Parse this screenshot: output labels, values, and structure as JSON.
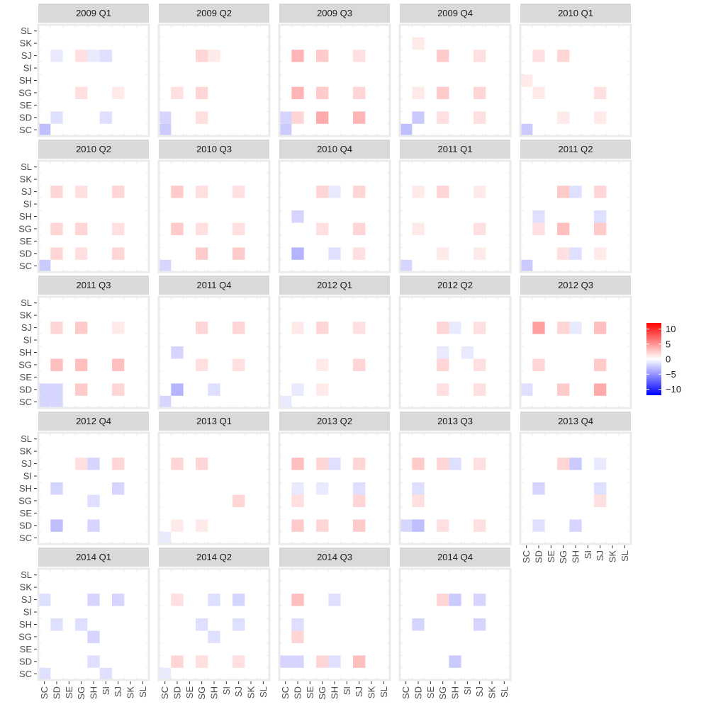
{
  "chart_data": {
    "type": "heatmap",
    "title": "",
    "x_categories": [
      "SC",
      "SD",
      "SE",
      "SG",
      "SH",
      "SI",
      "SJ",
      "SK",
      "SL"
    ],
    "y_categories": [
      "SC",
      "SD",
      "SE",
      "SG",
      "SH",
      "SI",
      "SJ",
      "SK",
      "SL"
    ],
    "color_scale": {
      "low": "#0000ff",
      "mid": "#ffffff",
      "high": "#ff0000",
      "limits": [
        -12,
        12
      ],
      "breaks": [
        10,
        5,
        0,
        -5,
        -10
      ],
      "break_labels": [
        "10",
        "5",
        "0",
        "−5",
        "−10"
      ]
    },
    "panels": [
      {
        "label": "2009 Q1",
        "cells": [
          [
            6,
            3,
            1.5
          ],
          [
            6,
            1,
            -1
          ],
          [
            6,
            4,
            -1
          ],
          [
            6,
            5,
            -1.5
          ],
          [
            3,
            3,
            1.5
          ],
          [
            3,
            6,
            1
          ],
          [
            1,
            1,
            -1.5
          ],
          [
            1,
            5,
            -1.5
          ],
          [
            0,
            0,
            -3
          ]
        ]
      },
      {
        "label": "2009 Q2",
        "cells": [
          [
            6,
            3,
            2
          ],
          [
            6,
            4,
            1
          ],
          [
            3,
            1,
            1.5
          ],
          [
            3,
            3,
            2
          ],
          [
            1,
            3,
            1.5
          ],
          [
            1,
            0,
            -2
          ],
          [
            0,
            0,
            -2.5
          ]
        ]
      },
      {
        "label": "2009 Q3",
        "cells": [
          [
            6,
            1,
            3.5
          ],
          [
            6,
            3,
            2.5
          ],
          [
            6,
            6,
            1.5
          ],
          [
            3,
            1,
            3.5
          ],
          [
            3,
            3,
            2.5
          ],
          [
            3,
            6,
            2
          ],
          [
            1,
            1,
            2
          ],
          [
            1,
            3,
            4
          ],
          [
            1,
            6,
            3.5
          ],
          [
            1,
            0,
            -2
          ],
          [
            0,
            0,
            -2.5
          ]
        ]
      },
      {
        "label": "2009 Q4",
        "cells": [
          [
            7,
            1,
            1
          ],
          [
            6,
            3,
            2.5
          ],
          [
            6,
            6,
            1.5
          ],
          [
            3,
            3,
            2.5
          ],
          [
            3,
            6,
            2
          ],
          [
            3,
            1,
            1
          ],
          [
            1,
            1,
            -2.5
          ],
          [
            1,
            3,
            1.5
          ],
          [
            1,
            6,
            1.5
          ],
          [
            0,
            0,
            -3
          ]
        ]
      },
      {
        "label": "2010 Q1",
        "cells": [
          [
            6,
            1,
            1.5
          ],
          [
            6,
            3,
            2
          ],
          [
            4,
            0,
            1
          ],
          [
            3,
            1,
            1
          ],
          [
            3,
            6,
            1.5
          ],
          [
            1,
            3,
            1
          ],
          [
            1,
            6,
            1
          ],
          [
            0,
            0,
            -2.5
          ]
        ]
      },
      {
        "label": "2010 Q2",
        "cells": [
          [
            6,
            1,
            2
          ],
          [
            6,
            3,
            1.5
          ],
          [
            6,
            6,
            2
          ],
          [
            3,
            1,
            2
          ],
          [
            3,
            3,
            2
          ],
          [
            3,
            6,
            1.5
          ],
          [
            1,
            1,
            2
          ],
          [
            1,
            3,
            1.5
          ],
          [
            1,
            6,
            2
          ],
          [
            0,
            0,
            -2.5
          ]
        ]
      },
      {
        "label": "2010 Q3",
        "cells": [
          [
            6,
            1,
            2.5
          ],
          [
            6,
            3,
            1.5
          ],
          [
            6,
            6,
            1.5
          ],
          [
            3,
            1,
            2.5
          ],
          [
            3,
            3,
            1.5
          ],
          [
            3,
            6,
            1.5
          ],
          [
            1,
            3,
            2.5
          ],
          [
            1,
            6,
            2.5
          ],
          [
            0,
            0,
            -2
          ]
        ]
      },
      {
        "label": "2010 Q4",
        "cells": [
          [
            6,
            3,
            2
          ],
          [
            6,
            4,
            -1
          ],
          [
            6,
            6,
            2
          ],
          [
            4,
            1,
            -2
          ],
          [
            3,
            3,
            1.5
          ],
          [
            3,
            6,
            2
          ],
          [
            1,
            1,
            -3.5
          ],
          [
            1,
            4,
            -1.5
          ],
          [
            1,
            6,
            1.5
          ]
        ]
      },
      {
        "label": "2011 Q1",
        "cells": [
          [
            6,
            1,
            1
          ],
          [
            6,
            3,
            2
          ],
          [
            6,
            6,
            1
          ],
          [
            3,
            1,
            1
          ],
          [
            3,
            6,
            1.5
          ],
          [
            1,
            3,
            1
          ],
          [
            1,
            6,
            1
          ],
          [
            0,
            0,
            -2
          ]
        ]
      },
      {
        "label": "2011 Q2",
        "cells": [
          [
            6,
            3,
            2.5
          ],
          [
            6,
            4,
            -1.5
          ],
          [
            6,
            6,
            2
          ],
          [
            4,
            1,
            -1.5
          ],
          [
            4,
            6,
            -1.5
          ],
          [
            3,
            1,
            1.5
          ],
          [
            3,
            3,
            3
          ],
          [
            3,
            6,
            2.5
          ],
          [
            1,
            3,
            1.5
          ],
          [
            1,
            4,
            -1.5
          ],
          [
            1,
            6,
            1
          ],
          [
            0,
            0,
            -2.5
          ]
        ]
      },
      {
        "label": "2011 Q3",
        "cells": [
          [
            6,
            1,
            2
          ],
          [
            6,
            3,
            2.5
          ],
          [
            6,
            6,
            1
          ],
          [
            3,
            1,
            3
          ],
          [
            3,
            3,
            3
          ],
          [
            3,
            6,
            3
          ],
          [
            1,
            0,
            -2
          ],
          [
            1,
            1,
            -2
          ],
          [
            1,
            3,
            2.5
          ],
          [
            1,
            6,
            2
          ],
          [
            0,
            0,
            -2
          ],
          [
            0,
            1,
            -2
          ]
        ]
      },
      {
        "label": "2011 Q4",
        "cells": [
          [
            6,
            3,
            2
          ],
          [
            6,
            6,
            2
          ],
          [
            4,
            1,
            -2
          ],
          [
            3,
            3,
            1.5
          ],
          [
            3,
            6,
            1.5
          ],
          [
            1,
            1,
            -3.5
          ],
          [
            1,
            4,
            -1.5
          ],
          [
            0,
            0,
            -2
          ]
        ]
      },
      {
        "label": "2012 Q1",
        "cells": [
          [
            6,
            1,
            1
          ],
          [
            6,
            3,
            2
          ],
          [
            6,
            6,
            1.5
          ],
          [
            3,
            3,
            1
          ],
          [
            3,
            6,
            2
          ],
          [
            1,
            1,
            -1
          ],
          [
            1,
            3,
            1
          ],
          [
            0,
            0,
            -1
          ]
        ]
      },
      {
        "label": "2012 Q2",
        "cells": [
          [
            6,
            3,
            2
          ],
          [
            6,
            4,
            -1
          ],
          [
            6,
            6,
            1.5
          ],
          [
            4,
            3,
            -1
          ],
          [
            4,
            5,
            -1
          ],
          [
            3,
            3,
            2
          ],
          [
            3,
            6,
            1.5
          ],
          [
            1,
            3,
            1.5
          ],
          [
            1,
            6,
            1.5
          ]
        ]
      },
      {
        "label": "2012 Q3",
        "cells": [
          [
            6,
            1,
            4.5
          ],
          [
            6,
            3,
            2
          ],
          [
            6,
            4,
            -1
          ],
          [
            6,
            6,
            3
          ],
          [
            3,
            1,
            2
          ],
          [
            3,
            6,
            2.5
          ],
          [
            1,
            3,
            2.5
          ],
          [
            1,
            6,
            4
          ],
          [
            1,
            0,
            -1.5
          ]
        ]
      },
      {
        "label": "2012 Q4",
        "cells": [
          [
            6,
            3,
            1.5
          ],
          [
            6,
            4,
            -2
          ],
          [
            6,
            6,
            2
          ],
          [
            4,
            1,
            -2
          ],
          [
            4,
            6,
            -2
          ],
          [
            3,
            4,
            -1.5
          ],
          [
            1,
            1,
            -3
          ],
          [
            1,
            4,
            -2
          ]
        ]
      },
      {
        "label": "2013 Q1",
        "cells": [
          [
            6,
            1,
            2
          ],
          [
            6,
            3,
            2
          ],
          [
            3,
            6,
            2
          ],
          [
            1,
            1,
            1
          ],
          [
            1,
            3,
            1
          ],
          [
            0,
            0,
            -1
          ]
        ]
      },
      {
        "label": "2013 Q2",
        "cells": [
          [
            6,
            1,
            3
          ],
          [
            6,
            3,
            2
          ],
          [
            6,
            4,
            -1.5
          ],
          [
            6,
            6,
            2
          ],
          [
            4,
            1,
            -1
          ],
          [
            4,
            3,
            -1
          ],
          [
            4,
            6,
            -1.5
          ],
          [
            3,
            1,
            1.5
          ],
          [
            3,
            6,
            2
          ],
          [
            1,
            1,
            2.5
          ],
          [
            1,
            3,
            2
          ],
          [
            1,
            6,
            2.5
          ]
        ]
      },
      {
        "label": "2013 Q3",
        "cells": [
          [
            6,
            1,
            2.5
          ],
          [
            6,
            3,
            2
          ],
          [
            6,
            4,
            -1.5
          ],
          [
            6,
            6,
            1.5
          ],
          [
            4,
            1,
            -1.5
          ],
          [
            3,
            1,
            1.5
          ],
          [
            1,
            0,
            -2
          ],
          [
            1,
            1,
            -3
          ],
          [
            1,
            3,
            1.5
          ],
          [
            1,
            6,
            1.5
          ]
        ]
      },
      {
        "label": "2013 Q4",
        "cells": [
          [
            6,
            3,
            2
          ],
          [
            6,
            4,
            -2.5
          ],
          [
            6,
            6,
            -1
          ],
          [
            4,
            1,
            -2
          ],
          [
            4,
            6,
            -1.5
          ],
          [
            3,
            6,
            1.5
          ],
          [
            1,
            1,
            -1.5
          ],
          [
            1,
            4,
            -2
          ]
        ]
      },
      {
        "label": "2014 Q1",
        "cells": [
          [
            6,
            0,
            -1.5
          ],
          [
            6,
            4,
            -2
          ],
          [
            6,
            6,
            -2
          ],
          [
            4,
            1,
            -1.5
          ],
          [
            4,
            3,
            -1.5
          ],
          [
            3,
            4,
            -2
          ],
          [
            1,
            4,
            -1.5
          ],
          [
            0,
            0,
            -1.5
          ],
          [
            0,
            5,
            -1.5
          ]
        ]
      },
      {
        "label": "2014 Q2",
        "cells": [
          [
            6,
            1,
            1.5
          ],
          [
            6,
            4,
            -1.5
          ],
          [
            6,
            6,
            -2
          ],
          [
            4,
            3,
            -1.5
          ],
          [
            4,
            6,
            -1.5
          ],
          [
            3,
            4,
            -1.5
          ],
          [
            1,
            1,
            2
          ],
          [
            1,
            3,
            1.5
          ],
          [
            1,
            6,
            1.5
          ],
          [
            0,
            0,
            -1
          ]
        ]
      },
      {
        "label": "2014 Q3",
        "cells": [
          [
            6,
            1,
            3
          ],
          [
            6,
            4,
            -1.5
          ],
          [
            4,
            1,
            -1.5
          ],
          [
            3,
            1,
            2
          ],
          [
            1,
            0,
            -2
          ],
          [
            1,
            1,
            -2
          ],
          [
            1,
            3,
            2
          ],
          [
            1,
            4,
            -1.5
          ],
          [
            1,
            6,
            3
          ]
        ]
      },
      {
        "label": "2014 Q4",
        "cells": [
          [
            6,
            3,
            2
          ],
          [
            6,
            4,
            -2.5
          ],
          [
            6,
            6,
            -2
          ],
          [
            4,
            1,
            -2
          ],
          [
            4,
            6,
            -2
          ],
          [
            1,
            4,
            -2.5
          ]
        ]
      }
    ]
  }
}
